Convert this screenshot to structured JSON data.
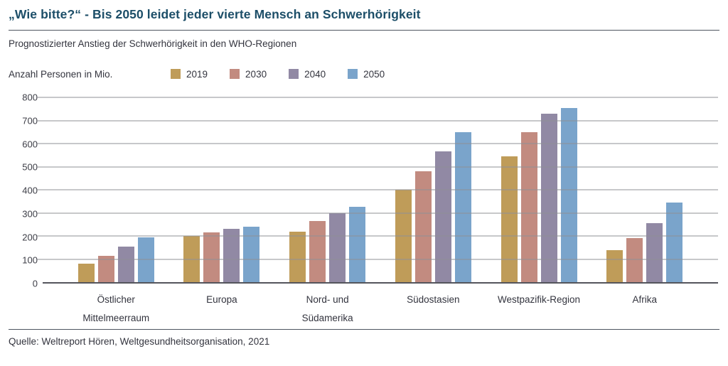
{
  "header": {
    "title": "„Wie bitte?“ - Bis 2050 leidet jeder vierte Mensch an Schwerhörigkeit",
    "subtitle": "Prognostizierter Anstieg der Schwerhörigkeit in den WHO-Regionen"
  },
  "footer": {
    "source": "Quelle: Weltreport Hören, Weltgesundheitsorganisation, 2021"
  },
  "colors": {
    "title_text": "#1C4E68",
    "body_text": "#33343E",
    "gridline": "#8F9096",
    "axis_line": "#54555C",
    "rule": "#4E5560"
  },
  "chart_data": {
    "type": "bar",
    "title": "Prognostizierter Anstieg der Schwerhörigkeit in den WHO-Regionen",
    "unit_label": "Anzahl Personen in Mio.",
    "xlabel": "",
    "ylabel": "Anzahl Personen in Mio.",
    "categories": [
      [
        "Östlicher",
        "Mittelmeerraum"
      ],
      [
        "Europa"
      ],
      [
        "Nord- und",
        "Südamerika"
      ],
      [
        "Südostasien"
      ],
      [
        "Westpazifik-Region"
      ],
      [
        "Afrika"
      ]
    ],
    "series": [
      {
        "name": "2019",
        "color": "#BF9C59",
        "values": [
          80,
          200,
          220,
          400,
          545,
          140
        ]
      },
      {
        "name": "2030",
        "color": "#C28B80",
        "values": [
          115,
          215,
          265,
          480,
          650,
          190
        ]
      },
      {
        "name": "2040",
        "color": "#9189A4",
        "values": [
          155,
          230,
          300,
          565,
          730,
          255
        ]
      },
      {
        "name": "2050",
        "color": "#7AA4CB",
        "values": [
          195,
          240,
          325,
          650,
          755,
          345
        ]
      }
    ],
    "ylim": [
      0,
      800
    ],
    "yticks": [
      0,
      100,
      200,
      300,
      400,
      500,
      600,
      700,
      800
    ],
    "grid": true,
    "legend_position": "top"
  }
}
